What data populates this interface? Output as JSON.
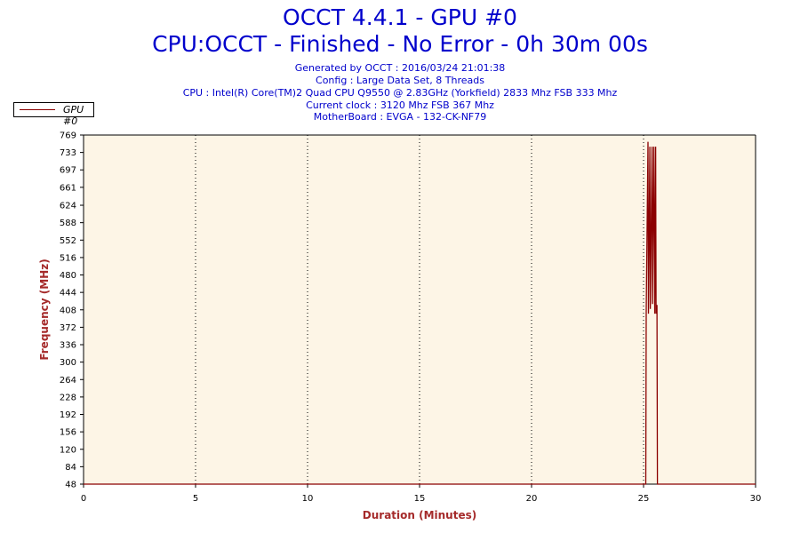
{
  "header": {
    "title": "OCCT 4.4.1 - GPU #0",
    "subtitle": "CPU:OCCT - Finished - No Error - 0h 30m 00s",
    "info_lines": [
      "Generated by OCCT : 2016/03/24 21:01:38",
      "Config : Large Data Set, 8 Threads",
      "CPU : Intel(R) Core(TM)2 Quad CPU Q9550 @ 2.83GHz (Yorkfield) 2833 Mhz FSB 333 Mhz",
      "Current clock : 3120 Mhz FSB 367 Mhz",
      "MotherBoard : EVGA - 132-CK-NF79"
    ]
  },
  "colors": {
    "title": "#0000cc",
    "axis_label": "#a52a2a",
    "series": "#8b0000",
    "plot_background": "#fdf5e6"
  },
  "chart_data": {
    "type": "line",
    "xlabel": "Duration (Minutes)",
    "ylabel": "Frequency (MHz)",
    "xlim": [
      0,
      30
    ],
    "ylim": [
      48,
      769
    ],
    "xticks": [
      0,
      5,
      10,
      15,
      20,
      25,
      30
    ],
    "yticks": [
      48,
      84,
      120,
      156,
      192,
      228,
      264,
      300,
      336,
      372,
      408,
      444,
      480,
      516,
      552,
      588,
      624,
      661,
      697,
      733,
      769
    ],
    "grid": "vertical dotted",
    "legend_position": "top-left",
    "series": [
      {
        "name": "GPU #0",
        "x": [
          0,
          25.1,
          25.12,
          25.2,
          25.22,
          25.28,
          25.3,
          25.38,
          25.4,
          25.46,
          25.5,
          25.54,
          25.56,
          25.6,
          25.62,
          25.7,
          30
        ],
        "y": [
          48,
          48,
          405,
          755,
          400,
          745,
          410,
          745,
          420,
          745,
          400,
          745,
          400,
          418,
          48,
          48,
          48
        ]
      }
    ]
  }
}
